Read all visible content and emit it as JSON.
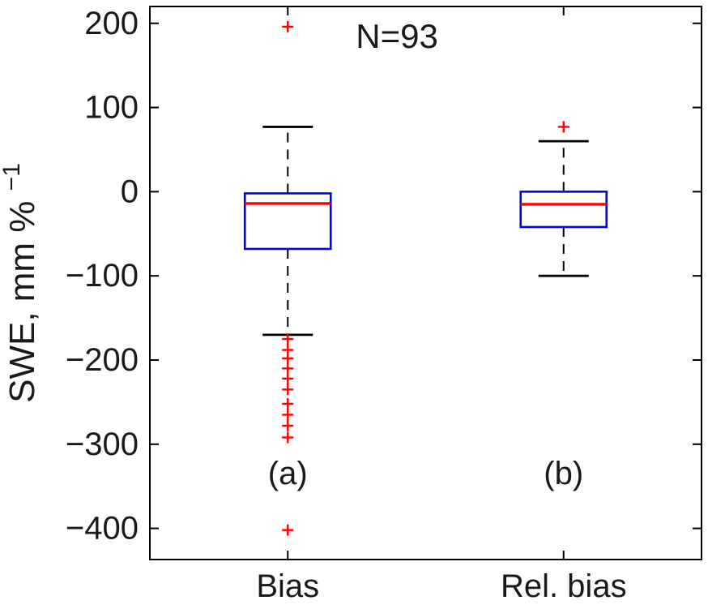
{
  "figure": {
    "annotation_text": "N=93",
    "ylabel_main": "SWE, mm %",
    "ylabel_superscript": "-1"
  },
  "chart_data": {
    "type": "boxplot",
    "title": "",
    "annotation": {
      "text": "N=93",
      "x_frac": 0.448,
      "y": 185
    },
    "ylabel": "SWE, mm %^{-1}",
    "ylim": [
      -437,
      220
    ],
    "yticks": [
      200,
      100,
      0,
      -100,
      -200,
      -300,
      -400
    ],
    "categories": [
      "Bias",
      "Rel. bias"
    ],
    "panel_label_y": -335,
    "grid": false,
    "legend": "none",
    "series": [
      {
        "name": "Bias",
        "panel_label": "(a)",
        "whisker_low": -170,
        "q1": -68,
        "median": -14,
        "q3": -2,
        "whisker_high": 77,
        "outliers": [
          196,
          -175,
          -188,
          -198,
          -210,
          -222,
          -235,
          -252,
          -265,
          -278,
          -292,
          -402
        ]
      },
      {
        "name": "Rel. bias",
        "panel_label": "(b)",
        "whisker_low": -100,
        "q1": -42,
        "median": -15,
        "q3": 0,
        "whisker_high": 60,
        "outliers": [
          77
        ]
      }
    ],
    "colors": {
      "box": "#0000ee",
      "median": "#ff0000",
      "whisker": "#000000",
      "cap": "#000000",
      "outlier": "#ff0000",
      "axis": "#000000",
      "text": "#1a1a1a"
    }
  }
}
